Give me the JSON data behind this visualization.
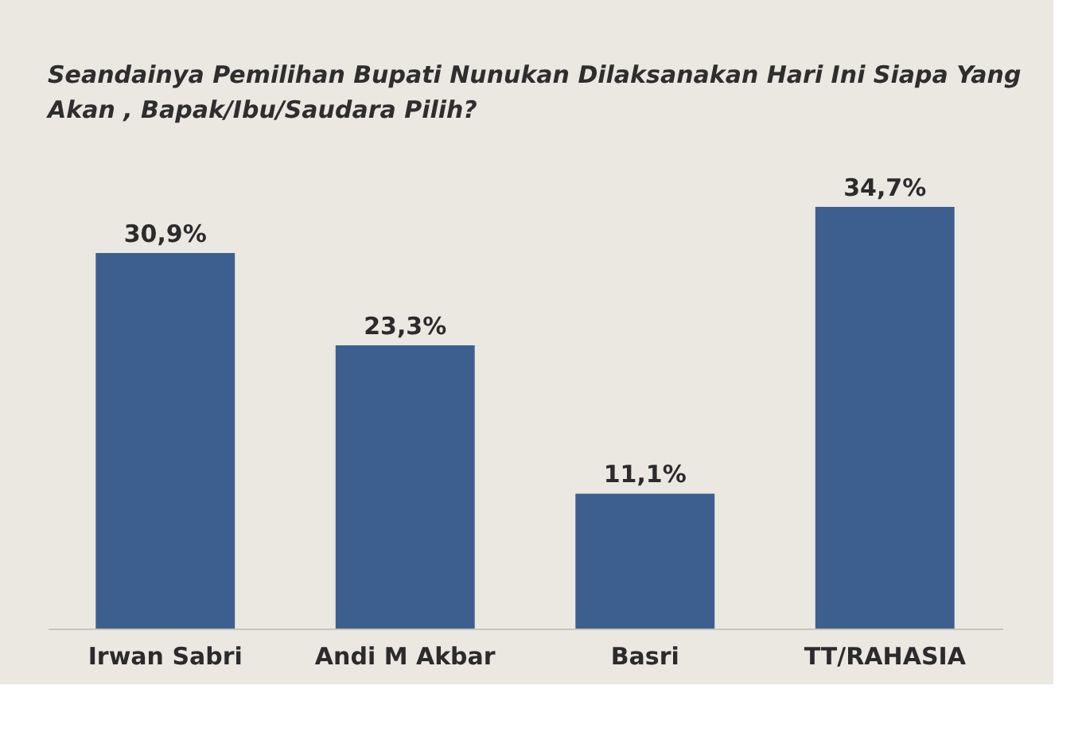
{
  "chart_data": {
    "type": "bar",
    "title": "Seandainya Pemilihan Bupati Nunukan Dilaksanakan Hari Ini Siapa Yang Akan , Bapak/Ibu/Saudara Pilih?",
    "categories": [
      "Irwan Sabri",
      "Andi M Akbar",
      "Basri",
      "TT/RAHASIA"
    ],
    "values": [
      30.9,
      23.3,
      11.1,
      34.7
    ],
    "value_labels": [
      "30,9%",
      "23,3%",
      "11,1%",
      "34,7%"
    ],
    "color": "#3d5f8f"
  }
}
